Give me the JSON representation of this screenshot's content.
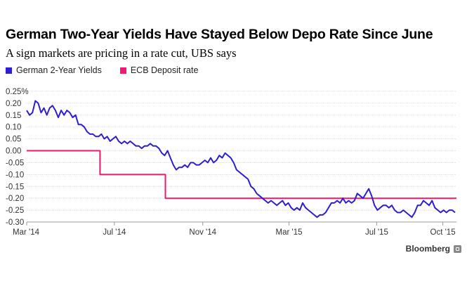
{
  "header": {
    "title": "German Two-Year Yields Have Stayed Below Depo Rate Since June",
    "subtitle": "A sign markets are pricing in a rate cut, UBS says"
  },
  "footer": {
    "brand": "Bloomberg"
  },
  "chart_data": {
    "type": "line",
    "x_axis": {
      "start": "2014-03-01",
      "end": "2015-10-20",
      "tick_labels": [
        "Mar '14",
        "Jul '14",
        "Nov '14",
        "Mar '15",
        "Jul '15",
        "Oct '15"
      ],
      "tick_dates": [
        "2014-03-01",
        "2014-07-01",
        "2014-11-01",
        "2015-03-01",
        "2015-07-01",
        "2015-10-01"
      ]
    },
    "y_axis": {
      "min": -0.3,
      "max": 0.25,
      "ticks": [
        0.25,
        0.2,
        0.15,
        0.1,
        0.05,
        0.0,
        -0.05,
        -0.1,
        -0.15,
        -0.2,
        -0.25,
        -0.3
      ],
      "tick_labels": [
        "0.25%",
        "0.20",
        "0.15",
        "0.10",
        "0.05",
        "0.00",
        "-0.05",
        "-0.10",
        "-0.15",
        "-0.20",
        "-0.25",
        "-0.30"
      ]
    },
    "grid": "horizontal",
    "legend": "top-left",
    "series": [
      {
        "name": "German 2-Year Yields",
        "color": "#2c1fd1",
        "points": [
          [
            "2014-03-01",
            0.17
          ],
          [
            "2014-03-05",
            0.15
          ],
          [
            "2014-03-09",
            0.16
          ],
          [
            "2014-03-13",
            0.21
          ],
          [
            "2014-03-17",
            0.2
          ],
          [
            "2014-03-21",
            0.16
          ],
          [
            "2014-03-25",
            0.18
          ],
          [
            "2014-03-29",
            0.15
          ],
          [
            "2014-04-02",
            0.18
          ],
          [
            "2014-04-06",
            0.19
          ],
          [
            "2014-04-10",
            0.17
          ],
          [
            "2014-04-14",
            0.14
          ],
          [
            "2014-04-18",
            0.17
          ],
          [
            "2014-04-22",
            0.15
          ],
          [
            "2014-04-26",
            0.17
          ],
          [
            "2014-04-30",
            0.16
          ],
          [
            "2014-05-04",
            0.14
          ],
          [
            "2014-05-08",
            0.15
          ],
          [
            "2014-05-12",
            0.11
          ],
          [
            "2014-05-16",
            0.11
          ],
          [
            "2014-05-20",
            0.1
          ],
          [
            "2014-05-24",
            0.08
          ],
          [
            "2014-05-28",
            0.07
          ],
          [
            "2014-06-01",
            0.07
          ],
          [
            "2014-06-05",
            0.06
          ],
          [
            "2014-06-09",
            0.06
          ],
          [
            "2014-06-13",
            0.07
          ],
          [
            "2014-06-17",
            0.05
          ],
          [
            "2014-06-21",
            0.06
          ],
          [
            "2014-06-25",
            0.04
          ],
          [
            "2014-06-29",
            0.05
          ],
          [
            "2014-07-03",
            0.06
          ],
          [
            "2014-07-07",
            0.04
          ],
          [
            "2014-07-11",
            0.03
          ],
          [
            "2014-07-15",
            0.04
          ],
          [
            "2014-07-19",
            0.03
          ],
          [
            "2014-07-23",
            0.04
          ],
          [
            "2014-07-27",
            0.03
          ],
          [
            "2014-07-31",
            0.02
          ],
          [
            "2014-08-04",
            0.02
          ],
          [
            "2014-08-08",
            0.01
          ],
          [
            "2014-08-12",
            0.02
          ],
          [
            "2014-08-16",
            0.02
          ],
          [
            "2014-08-20",
            0.03
          ],
          [
            "2014-08-24",
            0.02
          ],
          [
            "2014-08-28",
            0.02
          ],
          [
            "2014-09-01",
            0.01
          ],
          [
            "2014-09-05",
            -0.01
          ],
          [
            "2014-09-09",
            -0.02
          ],
          [
            "2014-09-13",
            0.0
          ],
          [
            "2014-09-17",
            -0.03
          ],
          [
            "2014-09-21",
            -0.06
          ],
          [
            "2014-09-25",
            -0.08
          ],
          [
            "2014-09-29",
            -0.07
          ],
          [
            "2014-10-03",
            -0.07
          ],
          [
            "2014-10-07",
            -0.06
          ],
          [
            "2014-10-11",
            -0.07
          ],
          [
            "2014-10-15",
            -0.05
          ],
          [
            "2014-10-19",
            -0.05
          ],
          [
            "2014-10-23",
            -0.06
          ],
          [
            "2014-10-27",
            -0.06
          ],
          [
            "2014-10-31",
            -0.05
          ],
          [
            "2014-11-04",
            -0.04
          ],
          [
            "2014-11-08",
            -0.05
          ],
          [
            "2014-11-12",
            -0.03
          ],
          [
            "2014-11-16",
            -0.05
          ],
          [
            "2014-11-20",
            -0.04
          ],
          [
            "2014-11-24",
            -0.02
          ],
          [
            "2014-11-28",
            -0.03
          ],
          [
            "2014-12-02",
            -0.01
          ],
          [
            "2014-12-06",
            -0.02
          ],
          [
            "2014-12-10",
            -0.03
          ],
          [
            "2014-12-14",
            -0.05
          ],
          [
            "2014-12-18",
            -0.08
          ],
          [
            "2014-12-22",
            -0.09
          ],
          [
            "2014-12-26",
            -0.1
          ],
          [
            "2014-12-30",
            -0.11
          ],
          [
            "2015-01-03",
            -0.12
          ],
          [
            "2015-01-07",
            -0.15
          ],
          [
            "2015-01-11",
            -0.16
          ],
          [
            "2015-01-15",
            -0.18
          ],
          [
            "2015-01-19",
            -0.19
          ],
          [
            "2015-01-23",
            -0.2
          ],
          [
            "2015-01-27",
            -0.21
          ],
          [
            "2015-01-31",
            -0.22
          ],
          [
            "2015-02-04",
            -0.21
          ],
          [
            "2015-02-08",
            -0.22
          ],
          [
            "2015-02-12",
            -0.23
          ],
          [
            "2015-02-16",
            -0.22
          ],
          [
            "2015-02-20",
            -0.21
          ],
          [
            "2015-02-24",
            -0.23
          ],
          [
            "2015-02-28",
            -0.22
          ],
          [
            "2015-03-04",
            -0.24
          ],
          [
            "2015-03-08",
            -0.25
          ],
          [
            "2015-03-12",
            -0.24
          ],
          [
            "2015-03-16",
            -0.25
          ],
          [
            "2015-03-20",
            -0.22
          ],
          [
            "2015-03-24",
            -0.24
          ],
          [
            "2015-03-28",
            -0.25
          ],
          [
            "2015-04-01",
            -0.26
          ],
          [
            "2015-04-05",
            -0.27
          ],
          [
            "2015-04-09",
            -0.28
          ],
          [
            "2015-04-13",
            -0.27
          ],
          [
            "2015-04-17",
            -0.27
          ],
          [
            "2015-04-21",
            -0.26
          ],
          [
            "2015-04-25",
            -0.24
          ],
          [
            "2015-04-29",
            -0.22
          ],
          [
            "2015-05-03",
            -0.22
          ],
          [
            "2015-05-07",
            -0.21
          ],
          [
            "2015-05-11",
            -0.22
          ],
          [
            "2015-05-15",
            -0.2
          ],
          [
            "2015-05-19",
            -0.22
          ],
          [
            "2015-05-23",
            -0.21
          ],
          [
            "2015-05-27",
            -0.22
          ],
          [
            "2015-05-31",
            -0.21
          ],
          [
            "2015-06-04",
            -0.18
          ],
          [
            "2015-06-08",
            -0.19
          ],
          [
            "2015-06-12",
            -0.2
          ],
          [
            "2015-06-16",
            -0.18
          ],
          [
            "2015-06-20",
            -0.16
          ],
          [
            "2015-06-24",
            -0.19
          ],
          [
            "2015-06-28",
            -0.23
          ],
          [
            "2015-07-02",
            -0.25
          ],
          [
            "2015-07-06",
            -0.24
          ],
          [
            "2015-07-10",
            -0.23
          ],
          [
            "2015-07-14",
            -0.23
          ],
          [
            "2015-07-18",
            -0.24
          ],
          [
            "2015-07-22",
            -0.23
          ],
          [
            "2015-07-26",
            -0.25
          ],
          [
            "2015-07-30",
            -0.26
          ],
          [
            "2015-08-03",
            -0.26
          ],
          [
            "2015-08-07",
            -0.25
          ],
          [
            "2015-08-11",
            -0.26
          ],
          [
            "2015-08-15",
            -0.27
          ],
          [
            "2015-08-19",
            -0.28
          ],
          [
            "2015-08-23",
            -0.26
          ],
          [
            "2015-08-27",
            -0.23
          ],
          [
            "2015-08-31",
            -0.23
          ],
          [
            "2015-09-04",
            -0.21
          ],
          [
            "2015-09-08",
            -0.22
          ],
          [
            "2015-09-12",
            -0.23
          ],
          [
            "2015-09-16",
            -0.21
          ],
          [
            "2015-09-20",
            -0.24
          ],
          [
            "2015-09-24",
            -0.25
          ],
          [
            "2015-09-28",
            -0.26
          ],
          [
            "2015-10-02",
            -0.25
          ],
          [
            "2015-10-06",
            -0.26
          ],
          [
            "2015-10-10",
            -0.25
          ],
          [
            "2015-10-14",
            -0.25
          ],
          [
            "2015-10-18",
            -0.26
          ]
        ]
      },
      {
        "name": "ECB Deposit rate",
        "color": "#ef1a6e",
        "step": true,
        "points": [
          [
            "2014-03-01",
            0.0
          ],
          [
            "2014-06-11",
            0.0
          ],
          [
            "2014-06-11",
            -0.1
          ],
          [
            "2014-09-10",
            -0.1
          ],
          [
            "2014-09-10",
            -0.2
          ],
          [
            "2015-10-20",
            -0.2
          ]
        ]
      }
    ]
  }
}
